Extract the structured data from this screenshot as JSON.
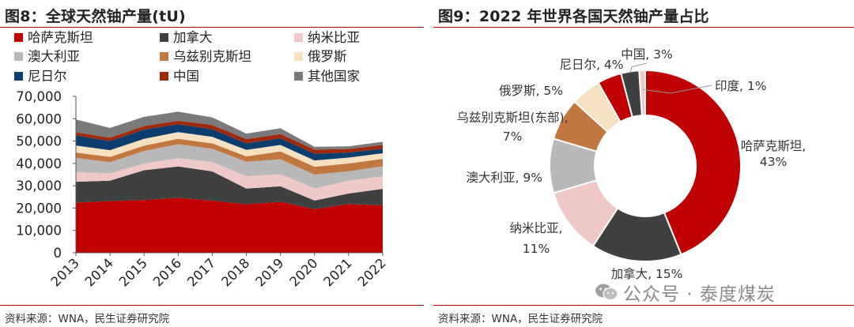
{
  "left": {
    "title": "图8：全球天然铀产量(tU)",
    "source": "资料来源：WNA，民生证券研究院"
  },
  "right": {
    "title": "图9：2022 年世界各国天然铀产量占比",
    "source": "资料来源：WNA，民生证券研究院"
  },
  "watermark": {
    "text": "公众号 · 泰度煤炭",
    "icon": "wechat-icon",
    "color": "#8a8a8a"
  },
  "chart_data": [
    {
      "type": "area",
      "stacked": true,
      "title": "全球天然铀产量(tU)",
      "categories": [
        "2013",
        "2014",
        "2015",
        "2016",
        "2017",
        "2018",
        "2019",
        "2020",
        "2021",
        "2022"
      ],
      "ylim": [
        0,
        70000
      ],
      "yticks": [
        0,
        10000,
        20000,
        30000,
        40000,
        50000,
        60000,
        70000
      ],
      "ytick_labels": [
        "0",
        "10,000",
        "20,000",
        "30,000",
        "40,000",
        "50,000",
        "60,000",
        "70,000"
      ],
      "legend_position": "top",
      "series": [
        {
          "name": "哈萨克斯坦",
          "color": "#c00000",
          "values": [
            22451,
            23127,
            23607,
            24586,
            23321,
            21705,
            22808,
            19477,
            21819,
            21227
          ]
        },
        {
          "name": "加拿大",
          "color": "#404040",
          "values": [
            9331,
            9134,
            13325,
            14039,
            13116,
            7001,
            6938,
            3885,
            4693,
            7351
          ]
        },
        {
          "name": "纳米比亚",
          "color": "#f0c8c8",
          "values": [
            4323,
            3255,
            2993,
            3654,
            4224,
            5525,
            5476,
            5413,
            5753,
            5613
          ]
        },
        {
          "name": "澳大利亚",
          "color": "#b8b8b8",
          "values": [
            6350,
            5001,
            5654,
            6315,
            5882,
            6517,
            6613,
            6203,
            4192,
            4553
          ]
        },
        {
          "name": "乌兹别克斯坦",
          "color": "#c07840",
          "values": [
            2400,
            2400,
            2385,
            2404,
            2404,
            2404,
            3500,
            3500,
            3500,
            3300
          ]
        },
        {
          "name": "俄罗斯",
          "color": "#f5e0c0",
          "values": [
            3135,
            2990,
            3055,
            3004,
            2917,
            2904,
            2911,
            2846,
            2635,
            2508
          ]
        },
        {
          "name": "尼日尔",
          "color": "#0b3d6e",
          "values": [
            4518,
            4057,
            4116,
            3479,
            3449,
            2911,
            2983,
            2991,
            2248,
            2020
          ]
        },
        {
          "name": "中国",
          "color": "#a0290a",
          "values": [
            1450,
            1500,
            1616,
            1616,
            1885,
            1885,
            1885,
            1885,
            1600,
            1700
          ]
        },
        {
          "name": "其他国家",
          "color": "#7a7a7a",
          "values": [
            5700,
            4400,
            4081,
            4040,
            3400,
            2500,
            2600,
            1200,
            1200,
            1400
          ]
        }
      ]
    },
    {
      "type": "pie",
      "donut": true,
      "title": "2022 年世界各国天然铀产量占比",
      "slices": [
        {
          "name": "哈萨克斯坦",
          "value": 43,
          "unit": "%",
          "color": "#c00000",
          "label": "哈萨克斯坦,\n43%"
        },
        {
          "name": "加拿大",
          "value": 15,
          "unit": "%",
          "color": "#404040",
          "label": "加拿大, 15%"
        },
        {
          "name": "纳米比亚",
          "value": 11,
          "unit": "%",
          "color": "#f0c8c8",
          "label": "纳米比亚,\n11%"
        },
        {
          "name": "澳大利亚",
          "value": 9,
          "unit": "%",
          "color": "#b8b8b8",
          "label": "澳大利亚, 9%"
        },
        {
          "name": "乌兹别克斯坦(东部)",
          "value": 7,
          "unit": "%",
          "color": "#c07840",
          "label": "乌兹别克斯坦(东部),\n7%"
        },
        {
          "name": "俄罗斯",
          "value": 5,
          "unit": "%",
          "color": "#f5e0c0",
          "label": "俄罗斯, 5%"
        },
        {
          "name": "尼日尔",
          "value": 4,
          "unit": "%",
          "color": "#c00000",
          "label": "尼日尔, 4%"
        },
        {
          "name": "中国",
          "value": 3,
          "unit": "%",
          "color": "#404040",
          "label": "中国, 3%"
        },
        {
          "name": "印度",
          "value": 1,
          "unit": "%",
          "color": "#f0c8c8",
          "label": "印度, 1%"
        }
      ]
    }
  ]
}
